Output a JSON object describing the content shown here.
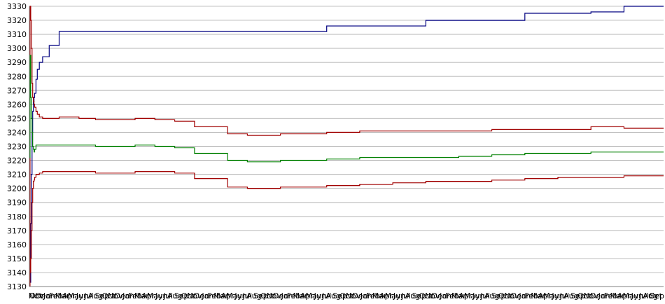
{
  "chart_data": {
    "type": "line",
    "title": "",
    "xlabel": "",
    "ylabel": "",
    "ylim": [
      3130,
      3330
    ],
    "yticks": [
      3130,
      3140,
      3150,
      3160,
      3170,
      3180,
      3190,
      3200,
      3210,
      3220,
      3230,
      3240,
      3250,
      3260,
      3270,
      3280,
      3290,
      3300,
      3310,
      3320,
      3330
    ],
    "grid": "horizontal",
    "legend": "none",
    "x_tick_labels": [
      "Oct",
      "Nov",
      "Dec",
      "Jan",
      "Feb",
      "Mar",
      "Apr",
      "May",
      "Jun",
      "Jul",
      "Aug",
      "Sep",
      "Oct",
      "Nov",
      "Dec",
      "Jan",
      "Feb",
      "Mar",
      "Apr",
      "May",
      "Jun",
      "Jul",
      "Aug",
      "Sep",
      "Oct",
      "Nov",
      "Dec",
      "Jan",
      "Feb",
      "Mar",
      "Apr",
      "May",
      "Jun",
      "Jul",
      "Aug",
      "Sep",
      "Oct",
      "Nov",
      "Dec",
      "Jan",
      "Feb",
      "Mar",
      "Apr",
      "May",
      "Jun",
      "Jul",
      "Aug",
      "Sep",
      "Oct",
      "Nov",
      "Dec",
      "Jan",
      "Feb",
      "Mar",
      "Apr",
      "May",
      "Jun",
      "Jul",
      "Aug",
      "Sep",
      "Oct",
      "Nov",
      "Dec",
      "Jan",
      "Feb",
      "Mar",
      "Apr",
      "May",
      "Jun",
      "Jul",
      "Aug",
      "Sep",
      "Oct",
      "Nov",
      "Dec",
      "Jan",
      "Feb",
      "Mar",
      "Apr",
      "May",
      "Jun",
      "Jul",
      "Aug",
      "Sep",
      "Oct",
      "Nov",
      "Dec",
      "Jan",
      "Feb",
      "Mar",
      "Apr",
      "May",
      "Jun",
      "Jul",
      "Aug",
      "Sep",
      "Oct"
    ],
    "x": [
      0,
      1,
      2,
      3,
      4,
      5,
      6,
      7,
      8,
      10,
      12,
      15,
      20,
      30,
      45,
      60,
      75,
      90,
      95,
      100,
      110,
      140,
      160,
      180,
      190,
      200,
      220,
      250,
      300,
      330,
      380,
      400,
      450,
      500,
      550,
      600,
      650,
      690,
      700,
      750,
      800,
      850,
      900,
      950,
      960
    ],
    "series": [
      {
        "color": "#000080",
        "values": [
          3131,
          3133,
          3175,
          3210,
          3240,
          3255,
          3262,
          3265,
          3268,
          3278,
          3285,
          3290,
          3294,
          3302,
          3312,
          3312,
          3312,
          3312,
          3312,
          3312,
          3312,
          3312,
          3312,
          3312,
          3312,
          3312,
          3312,
          3312,
          3312,
          3312,
          3312,
          3312,
          3316,
          3316,
          3316,
          3320,
          3320,
          3320,
          3320,
          3325,
          3325,
          3326,
          3330,
          3330,
          3330
        ]
      },
      {
        "color": "#a00000",
        "values": [
          3135,
          3330,
          3320,
          3300,
          3275,
          3265,
          3262,
          3260,
          3258,
          3255,
          3253,
          3251,
          3250,
          3250,
          3251,
          3251,
          3250,
          3250,
          3250,
          3249,
          3249,
          3249,
          3250,
          3250,
          3249,
          3249,
          3248,
          3244,
          3239,
          3238,
          3239,
          3239,
          3240,
          3241,
          3241,
          3241,
          3241,
          3241,
          3242,
          3242,
          3242,
          3244,
          3243,
          3243,
          3243
        ]
      },
      {
        "color": "#008000",
        "values": [
          3222,
          3295,
          3265,
          3250,
          3240,
          3230,
          3228,
          3226,
          3228,
          3231,
          3231,
          3231,
          3231,
          3231,
          3231,
          3231,
          3231,
          3231,
          3231,
          3230,
          3230,
          3230,
          3231,
          3231,
          3230,
          3230,
          3229,
          3225,
          3220,
          3219,
          3220,
          3220,
          3221,
          3222,
          3222,
          3222,
          3223,
          3223,
          3224,
          3225,
          3225,
          3226,
          3226,
          3226,
          3226
        ]
      },
      {
        "color": "#a00000",
        "values": [
          3130,
          3140,
          3150,
          3170,
          3190,
          3200,
          3205,
          3206,
          3208,
          3210,
          3210,
          3211,
          3212,
          3212,
          3212,
          3212,
          3212,
          3212,
          3212,
          3211,
          3211,
          3211,
          3212,
          3212,
          3212,
          3212,
          3211,
          3207,
          3201,
          3200,
          3201,
          3201,
          3202,
          3203,
          3204,
          3205,
          3205,
          3205,
          3206,
          3207,
          3208,
          3208,
          3209,
          3209,
          3209
        ]
      }
    ]
  }
}
